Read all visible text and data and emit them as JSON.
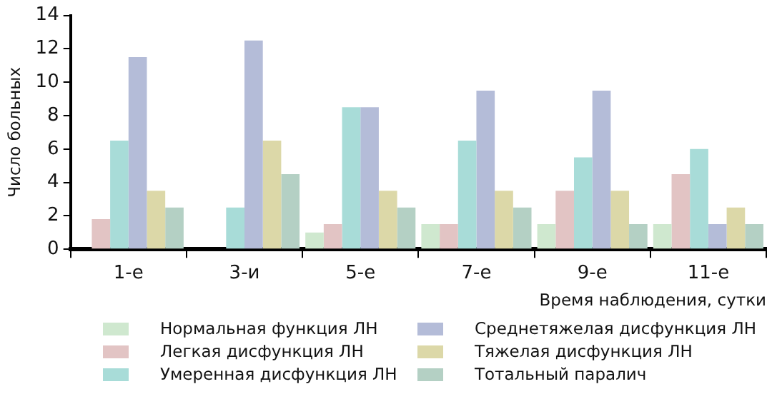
{
  "chart_data": {
    "type": "bar",
    "xlabel": "Время наблюдения, сутки",
    "ylabel": "Число больных",
    "categories": [
      "1-е",
      "3-и",
      "5-е",
      "7-е",
      "9-е",
      "11-е"
    ],
    "series": [
      {
        "name": "Нормальная функция ЛН",
        "color": "#cfe8cf",
        "values": [
          0,
          0,
          1,
          1.5,
          1.5,
          1.5
        ]
      },
      {
        "name": "Легкая дисфункция ЛН",
        "color": "#e2c4c4",
        "values": [
          1.8,
          0,
          1.5,
          1.5,
          3.5,
          4.5
        ]
      },
      {
        "name": "Умеренная дисфункция ЛН",
        "color": "#a8dcd8",
        "values": [
          6.5,
          2.5,
          8.5,
          6.5,
          5.5,
          6
        ]
      },
      {
        "name": "Среднетяжелая дисфункция ЛН",
        "color": "#b4bcd8",
        "values": [
          11.5,
          12.5,
          8.5,
          9.5,
          9.5,
          1.5
        ]
      },
      {
        "name": "Тяжелая дисфункция ЛН",
        "color": "#dcd8a8",
        "values": [
          3.5,
          6.5,
          3.5,
          3.5,
          3.5,
          2.5
        ]
      },
      {
        "name": "Тотальный паралич",
        "color": "#b4d0c4",
        "values": [
          2.5,
          4.5,
          2.5,
          2.5,
          1.5,
          1.5
        ]
      }
    ],
    "ylim": [
      0,
      14
    ],
    "yticks": [
      0,
      2,
      4,
      6,
      8,
      10,
      12,
      14
    ],
    "grid": false,
    "legend": "bottom"
  }
}
